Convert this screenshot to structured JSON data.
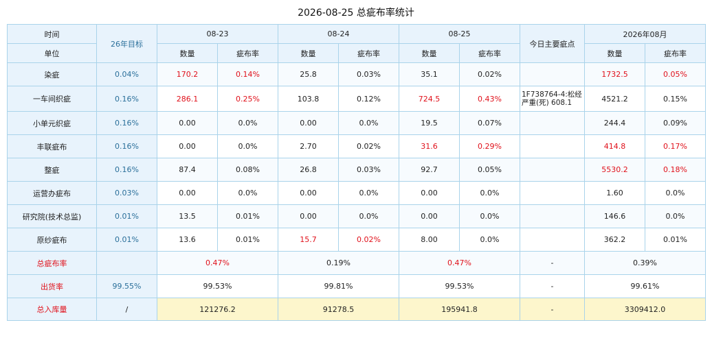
{
  "title": "2026-08-25 总疵布率统计",
  "headers": {
    "time": "时间",
    "unit": "单位",
    "target": "26年目标",
    "dates": [
      "08-23",
      "08-24",
      "08-25"
    ],
    "defect_main": "今日主要疵点",
    "month": "2026年08月",
    "qty": "数量",
    "rate": "疵布率"
  },
  "rows": [
    {
      "name": "染疵",
      "target": "0.04%",
      "d1q": "170.2",
      "d1r": "0.14%",
      "d2q": "25.8",
      "d2r": "0.03%",
      "d3q": "35.1",
      "d3r": "0.02%",
      "defect": "",
      "mq": "1732.5",
      "mr": "0.05%"
    },
    {
      "name": "一车间织疵",
      "target": "0.16%",
      "d1q": "286.1",
      "d1r": "0.25%",
      "d2q": "103.8",
      "d2r": "0.12%",
      "d3q": "724.5",
      "d3r": "0.43%",
      "defect": "1F738764-4:松经严重(死) 608.1",
      "mq": "4521.2",
      "mr": "0.15%"
    },
    {
      "name": "小单元织疵",
      "target": "0.16%",
      "d1q": "0.00",
      "d1r": "0.0%",
      "d2q": "0.00",
      "d2r": "0.0%",
      "d3q": "19.5",
      "d3r": "0.07%",
      "defect": "",
      "mq": "244.4",
      "mr": "0.09%"
    },
    {
      "name": "丰联疵布",
      "target": "0.16%",
      "d1q": "0.00",
      "d1r": "0.0%",
      "d2q": "2.70",
      "d2r": "0.02%",
      "d3q": "31.6",
      "d3r": "0.29%",
      "defect": "",
      "mq": "414.8",
      "mr": "0.17%"
    },
    {
      "name": "整疵",
      "target": "0.16%",
      "d1q": "87.4",
      "d1r": "0.08%",
      "d2q": "26.8",
      "d2r": "0.03%",
      "d3q": "92.7",
      "d3r": "0.05%",
      "defect": "",
      "mq": "5530.2",
      "mr": "0.18%"
    },
    {
      "name": "运营办疵布",
      "target": "0.03%",
      "d1q": "0.00",
      "d1r": "0.0%",
      "d2q": "0.00",
      "d2r": "0.0%",
      "d3q": "0.00",
      "d3r": "0.0%",
      "defect": "",
      "mq": "1.60",
      "mr": "0.0%"
    },
    {
      "name": "研究院(技术总监)",
      "target": "0.01%",
      "d1q": "13.5",
      "d1r": "0.01%",
      "d2q": "0.00",
      "d2r": "0.0%",
      "d3q": "0.00",
      "d3r": "0.0%",
      "defect": "",
      "mq": "146.6",
      "mr": "0.0%"
    },
    {
      "name": "原纱疵布",
      "target": "0.01%",
      "d1q": "13.6",
      "d1r": "0.01%",
      "d2q": "15.7",
      "d2r": "0.02%",
      "d3q": "8.00",
      "d3r": "0.0%",
      "defect": "",
      "mq": "362.2",
      "mr": "0.01%"
    }
  ],
  "summary": {
    "total_rate": {
      "label": "总疵布率",
      "target": "",
      "d1": "0.47%",
      "d2": "0.19%",
      "d3": "0.47%",
      "defect": "-",
      "month": "0.39%"
    },
    "ship_rate": {
      "label": "出货率",
      "target": "99.55%",
      "d1": "99.53%",
      "d2": "99.81%",
      "d3": "99.53%",
      "defect": "-",
      "month": "99.61%"
    },
    "stock": {
      "label": "总入库量",
      "target": "/",
      "d1": "121276.2",
      "d2": "91278.5",
      "d3": "195941.8",
      "defect": "-",
      "month": "3309412.0"
    }
  },
  "colors": {
    "highlight_red": "#e0101a",
    "header_bg": "#e8f3fc",
    "border": "#a9d3ea",
    "stock_bg": "#fdf6cc"
  }
}
